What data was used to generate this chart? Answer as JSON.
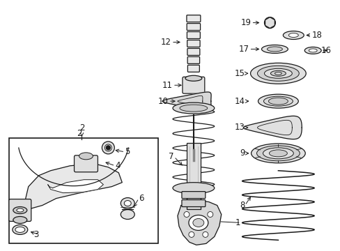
{
  "bg_color": "#ffffff",
  "line_color": "#1a1a1a",
  "figsize": [
    4.89,
    3.6
  ],
  "dpi": 100,
  "label_fontsize": 8.5,
  "lw": 0.9
}
